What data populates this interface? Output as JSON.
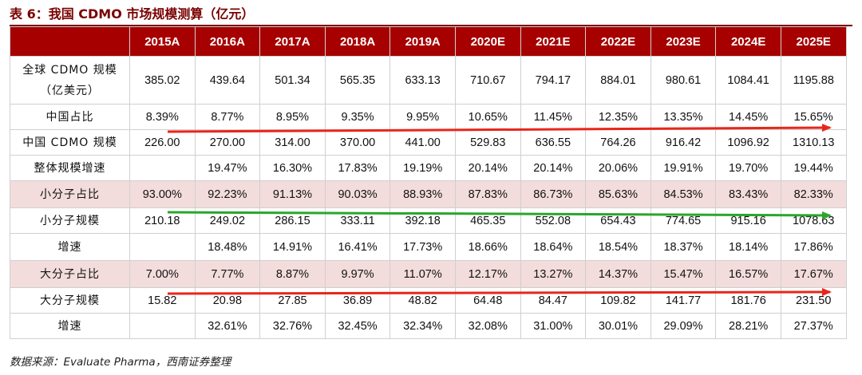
{
  "title": "表 6：我国 CDMO 市场规模测算（亿元）",
  "source": "数据来源：Evaluate Pharma，西南证券整理",
  "colors": {
    "header_bg": "#a60000",
    "highlight_row": "#f3dcdc",
    "arrow_red": "#e8261a",
    "arrow_green": "#2aa62a"
  },
  "years": [
    "2015A",
    "2016A",
    "2017A",
    "2018A",
    "2019A",
    "2020E",
    "2021E",
    "2022E",
    "2023E",
    "2024E",
    "2025E"
  ],
  "rows": [
    {
      "label": "全球 CDMO 规模\n（亿美元）",
      "values": [
        "385.02",
        "439.64",
        "501.34",
        "565.35",
        "633.13",
        "710.67",
        "794.17",
        "884.01",
        "980.61",
        "1084.41",
        "1195.88"
      ],
      "highlight": false
    },
    {
      "label": "中国占比",
      "values": [
        "8.39%",
        "8.77%",
        "8.95%",
        "9.35%",
        "9.95%",
        "10.65%",
        "11.45%",
        "12.35%",
        "13.35%",
        "14.45%",
        "15.65%"
      ],
      "highlight": false
    },
    {
      "label": "中国 CDMO 规模",
      "values": [
        "226.00",
        "270.00",
        "314.00",
        "370.00",
        "441.00",
        "529.83",
        "636.55",
        "764.26",
        "916.42",
        "1096.92",
        "1310.13"
      ],
      "highlight": false
    },
    {
      "label": "整体规模增速",
      "values": [
        "",
        "19.47%",
        "16.30%",
        "17.83%",
        "19.19%",
        "20.14%",
        "20.14%",
        "20.06%",
        "19.91%",
        "19.70%",
        "19.44%"
      ],
      "highlight": false
    },
    {
      "label": "小分子占比",
      "values": [
        "93.00%",
        "92.23%",
        "91.13%",
        "90.03%",
        "88.93%",
        "87.83%",
        "86.73%",
        "85.63%",
        "84.53%",
        "83.43%",
        "82.33%"
      ],
      "highlight": true
    },
    {
      "label": "小分子规模",
      "values": [
        "210.18",
        "249.02",
        "286.15",
        "333.11",
        "392.18",
        "465.35",
        "552.08",
        "654.43",
        "774.65",
        "915.16",
        "1078.63"
      ],
      "highlight": false
    },
    {
      "label": "增速",
      "values": [
        "",
        "18.48%",
        "14.91%",
        "16.41%",
        "17.73%",
        "18.66%",
        "18.64%",
        "18.54%",
        "18.37%",
        "18.14%",
        "17.86%"
      ],
      "highlight": false
    },
    {
      "label": "大分子占比",
      "values": [
        "7.00%",
        "7.77%",
        "8.87%",
        "9.97%",
        "11.07%",
        "12.17%",
        "13.27%",
        "14.37%",
        "15.47%",
        "16.57%",
        "17.67%"
      ],
      "highlight": true
    },
    {
      "label": "大分子规模",
      "values": [
        "15.82",
        "20.98",
        "27.85",
        "36.89",
        "48.82",
        "64.48",
        "84.47",
        "109.82",
        "141.77",
        "181.76",
        "231.50"
      ],
      "highlight": false
    },
    {
      "label": "增速",
      "values": [
        "",
        "32.61%",
        "32.76%",
        "32.45%",
        "32.34%",
        "32.08%",
        "31.00%",
        "30.01%",
        "29.09%",
        "28.21%",
        "27.37%"
      ],
      "highlight": false
    }
  ]
}
